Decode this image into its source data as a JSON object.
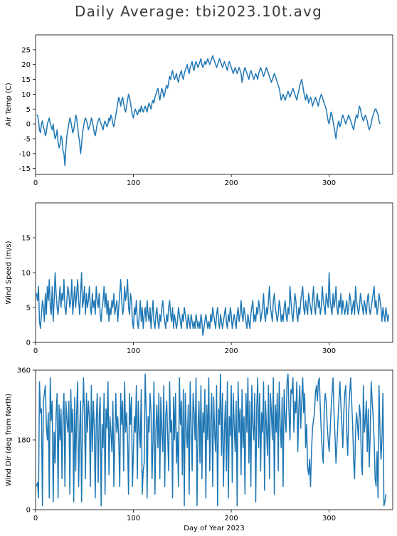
{
  "figure": {
    "title": "Daily Average: tbi2023.10t.avg"
  },
  "colors": {
    "line": "#1f77b4",
    "axes": "#000000",
    "background": "#ffffff"
  },
  "chart_data": [
    {
      "type": "line",
      "ylabel": "Air Temp (C)",
      "xlabel": "",
      "xlim": [
        0,
        365
      ],
      "ylim": [
        -17,
        30
      ],
      "xticks": [
        0,
        100,
        200,
        300
      ],
      "yticks": [
        -15,
        -10,
        -5,
        0,
        5,
        10,
        15,
        20,
        25
      ],
      "grid": false,
      "series": [
        {
          "values": [
            3,
            3,
            1,
            -2,
            -3,
            0,
            1,
            -1,
            -2,
            -4,
            -3,
            0,
            1,
            2,
            0,
            -1,
            -2,
            0,
            -3,
            -5,
            -4,
            -2,
            -6,
            -8,
            -7,
            -4,
            -5,
            -9,
            -10,
            -14,
            -8,
            -4,
            -2,
            0,
            2,
            1,
            -1,
            -3,
            -2,
            0,
            3,
            2,
            -1,
            -4,
            -6,
            -10,
            -7,
            -3,
            -1,
            1,
            2,
            1,
            0,
            -2,
            -1,
            0,
            2,
            1,
            -1,
            -3,
            -4,
            -2,
            0,
            1,
            2,
            1,
            0,
            -1,
            -2,
            0,
            1,
            0,
            -1,
            0,
            2,
            1,
            3,
            2,
            0,
            -1,
            1,
            3,
            5,
            7,
            9,
            8,
            6,
            8,
            9,
            7,
            5,
            4,
            6,
            8,
            10,
            9,
            7,
            5,
            3,
            2,
            4,
            5,
            4,
            3,
            4,
            5,
            4,
            6,
            5,
            4,
            5,
            6,
            5,
            4,
            6,
            7,
            6,
            5,
            7,
            8,
            7,
            9,
            10,
            11,
            12,
            10,
            8,
            10,
            12,
            11,
            9,
            10,
            12,
            13,
            12,
            14,
            16,
            15,
            17,
            18,
            16,
            15,
            16,
            17,
            15,
            14,
            16,
            17,
            18,
            16,
            15,
            17,
            18,
            19,
            20,
            18,
            17,
            19,
            20,
            21,
            19,
            18,
            20,
            21,
            20,
            19,
            20,
            21,
            22,
            20,
            19,
            20,
            21,
            20,
            21,
            22,
            21,
            20,
            21,
            22,
            23,
            22,
            21,
            20,
            19,
            20,
            21,
            22,
            21,
            20,
            19,
            20,
            21,
            20,
            19,
            18,
            20,
            21,
            20,
            19,
            18,
            17,
            18,
            19,
            18,
            17,
            18,
            19,
            18,
            17,
            14,
            16,
            18,
            19,
            18,
            17,
            16,
            15,
            17,
            18,
            17,
            16,
            15,
            16,
            17,
            16,
            15,
            17,
            18,
            19,
            18,
            17,
            16,
            17,
            18,
            19,
            18,
            17,
            16,
            15,
            14,
            15,
            16,
            17,
            16,
            15,
            14,
            13,
            12,
            10,
            8,
            9,
            10,
            9,
            8,
            9,
            10,
            11,
            10,
            9,
            10,
            11,
            12,
            11,
            10,
            9,
            8,
            10,
            11,
            13,
            14,
            15,
            13,
            11,
            9,
            8,
            10,
            9,
            7,
            8,
            9,
            8,
            6,
            7,
            8,
            9,
            8,
            7,
            6,
            8,
            9,
            10,
            9,
            8,
            7,
            6,
            5,
            3,
            1,
            0,
            2,
            4,
            3,
            1,
            -1,
            -3,
            -5,
            -2,
            0,
            1,
            -1,
            0,
            2,
            3,
            2,
            1,
            0,
            1,
            2,
            3,
            2,
            1,
            0,
            -1,
            -2,
            0,
            2,
            3,
            2,
            4,
            6,
            5,
            3,
            2,
            1,
            2,
            3,
            2,
            1,
            -1,
            -2,
            -1,
            0,
            2,
            3,
            4,
            5,
            5,
            4,
            3,
            1,
            0
          ]
        }
      ]
    },
    {
      "type": "line",
      "ylabel": "Wind Speed (m/s)",
      "xlabel": "",
      "xlim": [
        0,
        365
      ],
      "ylim": [
        0,
        20
      ],
      "xticks": [
        0,
        100,
        200,
        300
      ],
      "yticks": [
        0,
        5,
        10,
        15
      ],
      "grid": false,
      "series": [
        {
          "values": [
            7,
            6,
            8,
            3,
            2,
            4,
            6,
            5,
            3,
            7,
            4,
            8,
            6,
            9,
            5,
            4,
            8,
            3,
            6,
            10,
            7,
            5,
            4,
            6,
            8,
            5,
            7,
            6,
            9,
            5,
            4,
            6,
            8,
            7,
            5,
            6,
            9,
            4,
            6,
            8,
            5,
            7,
            9,
            6,
            4,
            7,
            10,
            5,
            6,
            8,
            4,
            7,
            5,
            6,
            8,
            5,
            4,
            7,
            5,
            6,
            4,
            8,
            6,
            5,
            7,
            4,
            3,
            5,
            6,
            8,
            5,
            7,
            4,
            6,
            3,
            5,
            4,
            6,
            5,
            7,
            4,
            5,
            6,
            3,
            5,
            7,
            9,
            6,
            4,
            5,
            8,
            6,
            7,
            9,
            5,
            4,
            7,
            6,
            3,
            2,
            5,
            4,
            6,
            3,
            2,
            4,
            6,
            3,
            5,
            2,
            4,
            5,
            3,
            6,
            4,
            3,
            5,
            2,
            4,
            6,
            3,
            2,
            4,
            5,
            3,
            2,
            4,
            3,
            5,
            6,
            4,
            3,
            2,
            4,
            3,
            5,
            6,
            4,
            3,
            5,
            2,
            4,
            3,
            2,
            3,
            5,
            4,
            3,
            2,
            4,
            3,
            5,
            4,
            3,
            2,
            4,
            3,
            2,
            4,
            3,
            2,
            3,
            2,
            4,
            3,
            2,
            3,
            2,
            4,
            3,
            1,
            2,
            3,
            4,
            3,
            2,
            3,
            2,
            4,
            3,
            5,
            4,
            3,
            2,
            4,
            5,
            3,
            2,
            4,
            3,
            2,
            3,
            4,
            5,
            3,
            2,
            4,
            3,
            5,
            4,
            2,
            3,
            4,
            3,
            2,
            4,
            5,
            3,
            4,
            6,
            4,
            3,
            5,
            4,
            3,
            2,
            4,
            3,
            2,
            4,
            5,
            6,
            3,
            4,
            3,
            5,
            4,
            6,
            5,
            3,
            4,
            5,
            7,
            4,
            3,
            5,
            4,
            6,
            8,
            5,
            4,
            3,
            6,
            7,
            5,
            4,
            3,
            4,
            6,
            5,
            3,
            4,
            3,
            5,
            6,
            4,
            3,
            5,
            4,
            8,
            6,
            4,
            3,
            5,
            7,
            6,
            4,
            3,
            5,
            4,
            6,
            7,
            8,
            5,
            4,
            6,
            5,
            4,
            7,
            6,
            5,
            4,
            6,
            8,
            5,
            4,
            6,
            7,
            5,
            6,
            4,
            5,
            8,
            6,
            5,
            4,
            7,
            6,
            5,
            10,
            6,
            5,
            4,
            7,
            5,
            6,
            8,
            5,
            4,
            6,
            5,
            7,
            4,
            6,
            5,
            4,
            5,
            6,
            4,
            5,
            7,
            6,
            4,
            5,
            6,
            4,
            8,
            6,
            5,
            4,
            5,
            7,
            6,
            5,
            4,
            6,
            5,
            4,
            6,
            7,
            5,
            4,
            5,
            6,
            7,
            8,
            5,
            6,
            4,
            5,
            7,
            6,
            5,
            3,
            5,
            4,
            3,
            5,
            4,
            3,
            4
          ]
        }
      ]
    },
    {
      "type": "line",
      "ylabel": "Wind Dir (deg from North)",
      "xlabel": "Day of Year 2023",
      "xlim": [
        0,
        365
      ],
      "ylim": [
        0,
        360
      ],
      "xticks": [
        0,
        100,
        200,
        300
      ],
      "yticks": [
        0,
        180,
        360
      ],
      "grid": false,
      "series": [
        {
          "values": [
            60,
            70,
            30,
            330,
            250,
            260,
            10,
            280,
            300,
            320,
            220,
            180,
            250,
            30,
            340,
            230,
            280,
            20,
            200,
            120,
            250,
            300,
            30,
            270,
            180,
            260,
            80,
            240,
            300,
            60,
            280,
            230,
            200,
            280,
            40,
            310,
            200,
            260,
            20,
            290,
            100,
            250,
            330,
            60,
            200,
            280,
            20,
            220,
            340,
            240,
            80,
            300,
            200,
            280,
            240,
            60,
            320,
            150,
            280,
            210,
            30,
            230,
            300,
            70,
            240,
            290,
            10,
            220,
            160,
            300,
            40,
            260,
            210,
            330,
            90,
            240,
            200,
            150,
            280,
            60,
            180,
            300,
            200,
            240,
            180,
            60,
            300,
            220,
            280,
            100,
            330,
            200,
            250,
            180,
            40,
            300,
            220,
            290,
            60,
            150,
            240,
            200,
            320,
            80,
            280,
            200,
            160,
            310,
            40,
            100,
            120,
            350,
            260,
            30,
            240,
            200,
            300,
            250,
            80,
            180,
            330,
            40,
            210,
            270,
            160,
            300,
            80,
            290,
            200,
            150,
            320,
            60,
            240,
            280,
            190,
            100,
            330,
            200,
            230,
            30,
            290,
            180,
            300,
            120,
            200,
            60,
            340,
            220,
            280,
            90,
            310,
            10,
            300,
            200,
            160,
            270,
            40,
            330,
            220,
            100,
            300,
            250,
            180,
            340,
            10,
            210,
            280,
            120,
            320,
            80,
            250,
            200,
            310,
            30,
            270,
            180,
            340,
            100,
            230,
            300,
            60,
            290,
            200,
            150,
            320,
            10,
            260,
            220,
            350,
            140,
            300,
            60,
            200,
            280,
            100,
            330,
            30,
            240,
            190,
            320,
            70,
            300,
            220,
            150,
            280,
            10,
            330,
            200,
            260,
            90,
            310,
            160,
            240,
            40,
            300,
            200,
            340,
            120,
            280,
            60,
            320,
            220,
            180,
            300,
            20,
            260,
            340,
            160,
            300,
            100,
            250,
            200,
            330,
            50,
            280,
            210,
            140,
            320,
            80,
            300,
            250,
            180,
            340,
            40,
            270,
            200,
            300,
            100,
            330,
            220,
            160,
            290,
            60,
            310,
            240,
            200,
            330,
            350,
            250,
            180,
            310,
            300,
            340,
            200,
            280,
            250,
            330,
            150,
            260,
            320,
            210,
            280,
            340,
            250,
            300,
            160,
            220,
            110,
            90,
            130,
            60,
            150,
            210,
            230,
            250,
            300,
            320,
            280,
            330,
            340,
            260,
            200,
            150,
            120,
            260,
            300,
            280,
            220,
            180,
            150,
            200,
            260,
            300,
            340,
            250,
            190,
            120,
            170,
            230,
            280,
            330,
            270,
            220,
            160,
            250,
            300,
            320,
            200,
            140,
            250,
            300,
            340,
            280,
            220,
            130,
            80,
            200,
            250,
            220,
            180,
            270,
            240,
            120,
            90,
            320,
            200,
            230,
            280,
            150,
            260,
            110,
            200,
            330,
            280,
            240,
            180,
            80,
            60,
            150,
            30,
            320,
            200,
            130,
            180,
            300,
            10,
            20,
            40
          ]
        }
      ]
    }
  ]
}
